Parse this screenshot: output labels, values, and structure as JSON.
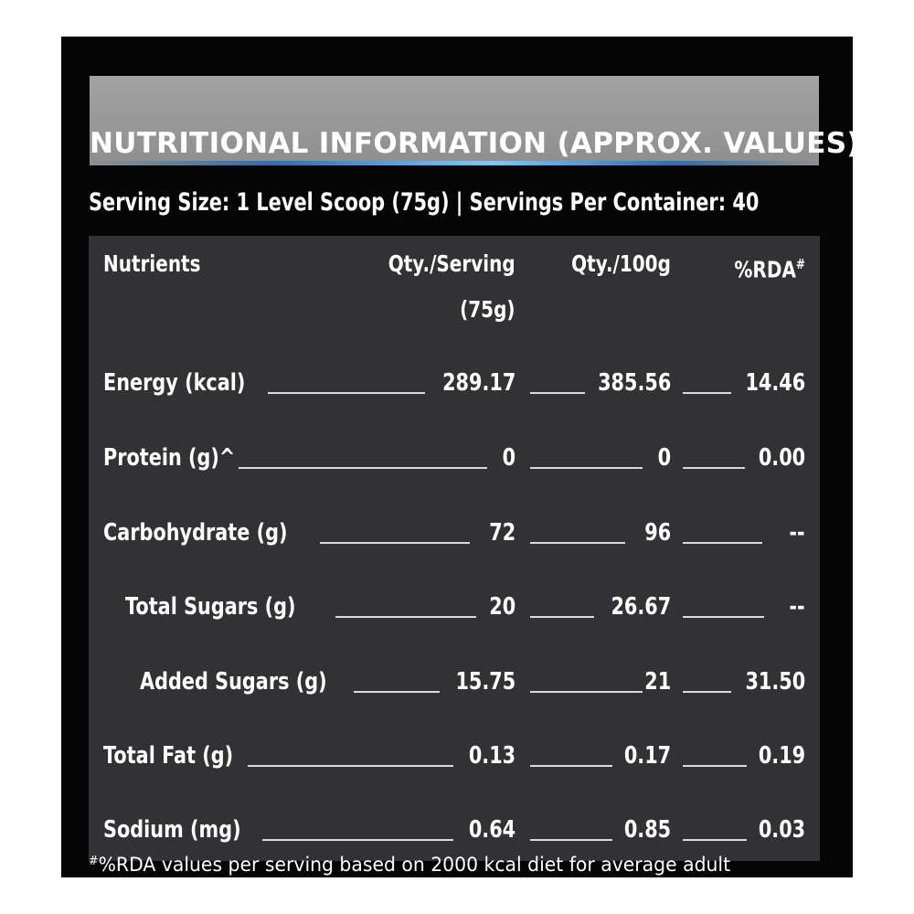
{
  "header": {
    "title": "NUTRITIONAL INFORMATION (APPROX. VALUES):"
  },
  "serving": {
    "text": "Serving Size: 1 Level Scoop (75g)  |  Servings Per Container: 40"
  },
  "table": {
    "headers": {
      "nutrients": "Nutrients",
      "qty_serving_line1": "Qty./Serving",
      "qty_serving_line2": "(75g)",
      "qty_100g": "Qty./100g",
      "rda": "%RDA",
      "rda_mark": "#"
    },
    "rows": [
      {
        "name": "Energy (kcal)",
        "serving": "289.17",
        "per100g": "385.56",
        "rda": "14.46"
      },
      {
        "name": "Protein (g)^",
        "serving": "0",
        "per100g": "0",
        "rda": "0.00"
      },
      {
        "name": "Carbohydrate (g)",
        "serving": "72",
        "per100g": "96",
        "rda": "--"
      },
      {
        "name": "Total Sugars (g)",
        "serving": "20",
        "per100g": "26.67",
        "rda": "--"
      },
      {
        "name": "Added Sugars (g)",
        "serving": "15.75",
        "per100g": "21",
        "rda": "31.50"
      },
      {
        "name": "Total Fat (g)",
        "serving": "0.13",
        "per100g": "0.17",
        "rda": "0.19"
      },
      {
        "name": "Sodium (mg)",
        "serving": "0.64",
        "per100g": "0.85",
        "rda": "0.03"
      }
    ]
  },
  "footnote": {
    "mark": "#",
    "text": "%RDA values per serving based on 2000 kcal diet for average adult"
  },
  "colors": {
    "panel_background": "#050505",
    "title_bar": "#9a9a9a",
    "title_glow": "#7ec8ff",
    "table_background": "#323234",
    "text": "#ffffff"
  }
}
